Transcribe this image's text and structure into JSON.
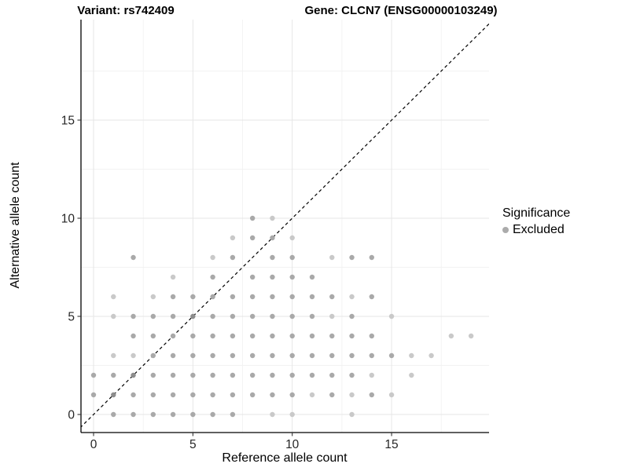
{
  "header": {
    "variant_title": "Variant: rs742409",
    "gene_title": "Gene: CLCN7 (ENSG00000103249)"
  },
  "chart_data": {
    "type": "scatter",
    "xlabel": "Reference allele count",
    "ylabel": "Alternative allele count",
    "x_ticks": [
      0,
      5,
      10,
      15
    ],
    "y_ticks": [
      0,
      5,
      10,
      15
    ],
    "x_minor_ticks": [
      2.5,
      7.5,
      12.5,
      17.5
    ],
    "y_minor_ticks": [
      2.5,
      7.5,
      12.5,
      17.5
    ],
    "xlim": [
      -0.65,
      19.9
    ],
    "ylim": [
      -0.95,
      20.1
    ],
    "grid": "major+minor",
    "identity_line": {
      "equation": "y = x",
      "style": "dashed",
      "color": "#000000"
    },
    "legend": {
      "position": "right",
      "title": "Significance",
      "items": [
        {
          "label": "Excluded",
          "color": "#ababab"
        }
      ]
    },
    "point_shades": {
      "l": "#c9c9c9",
      "m": "#a9a9a9",
      "d": "#8d8d8d"
    },
    "points_format": [
      "reference_allele_count",
      "alternative_allele_count",
      "shade"
    ],
    "points": [
      [
        1,
        0,
        "m"
      ],
      [
        2,
        0,
        "m"
      ],
      [
        3,
        0,
        "m"
      ],
      [
        4,
        0,
        "m"
      ],
      [
        5,
        0,
        "m"
      ],
      [
        6,
        0,
        "m"
      ],
      [
        7,
        0,
        "m"
      ],
      [
        9,
        0,
        "l"
      ],
      [
        10,
        0,
        "l"
      ],
      [
        13,
        0,
        "l"
      ],
      [
        0,
        1,
        "m"
      ],
      [
        1,
        1,
        "d"
      ],
      [
        2,
        1,
        "m"
      ],
      [
        3,
        1,
        "m"
      ],
      [
        4,
        1,
        "m"
      ],
      [
        5,
        1,
        "m"
      ],
      [
        6,
        1,
        "m"
      ],
      [
        7,
        1,
        "m"
      ],
      [
        8,
        1,
        "m"
      ],
      [
        9,
        1,
        "m"
      ],
      [
        10,
        1,
        "m"
      ],
      [
        11,
        1,
        "l"
      ],
      [
        12,
        1,
        "m"
      ],
      [
        13,
        1,
        "l"
      ],
      [
        14,
        1,
        "m"
      ],
      [
        15,
        1,
        "l"
      ],
      [
        0,
        2,
        "m"
      ],
      [
        1,
        2,
        "m"
      ],
      [
        2,
        2,
        "d"
      ],
      [
        3,
        2,
        "m"
      ],
      [
        4,
        2,
        "m"
      ],
      [
        5,
        2,
        "m"
      ],
      [
        6,
        2,
        "m"
      ],
      [
        7,
        2,
        "m"
      ],
      [
        8,
        2,
        "m"
      ],
      [
        9,
        2,
        "m"
      ],
      [
        10,
        2,
        "m"
      ],
      [
        11,
        2,
        "m"
      ],
      [
        12,
        2,
        "m"
      ],
      [
        13,
        2,
        "m"
      ],
      [
        14,
        2,
        "l"
      ],
      [
        16,
        2,
        "l"
      ],
      [
        1,
        3,
        "l"
      ],
      [
        2,
        3,
        "l"
      ],
      [
        3,
        3,
        "m"
      ],
      [
        4,
        3,
        "m"
      ],
      [
        5,
        3,
        "m"
      ],
      [
        6,
        3,
        "m"
      ],
      [
        7,
        3,
        "m"
      ],
      [
        8,
        3,
        "m"
      ],
      [
        9,
        3,
        "m"
      ],
      [
        10,
        3,
        "m"
      ],
      [
        11,
        3,
        "m"
      ],
      [
        12,
        3,
        "m"
      ],
      [
        13,
        3,
        "m"
      ],
      [
        14,
        3,
        "m"
      ],
      [
        15,
        3,
        "m"
      ],
      [
        16,
        3,
        "l"
      ],
      [
        17,
        3,
        "l"
      ],
      [
        2,
        4,
        "m"
      ],
      [
        3,
        4,
        "m"
      ],
      [
        4,
        4,
        "m"
      ],
      [
        5,
        4,
        "m"
      ],
      [
        6,
        4,
        "m"
      ],
      [
        7,
        4,
        "m"
      ],
      [
        8,
        4,
        "m"
      ],
      [
        9,
        4,
        "m"
      ],
      [
        10,
        4,
        "m"
      ],
      [
        11,
        4,
        "m"
      ],
      [
        12,
        4,
        "m"
      ],
      [
        13,
        4,
        "m"
      ],
      [
        14,
        4,
        "m"
      ],
      [
        18,
        4,
        "l"
      ],
      [
        19,
        4,
        "l"
      ],
      [
        1,
        5,
        "l"
      ],
      [
        2,
        5,
        "m"
      ],
      [
        3,
        5,
        "m"
      ],
      [
        4,
        5,
        "m"
      ],
      [
        5,
        5,
        "d"
      ],
      [
        6,
        5,
        "m"
      ],
      [
        7,
        5,
        "m"
      ],
      [
        8,
        5,
        "m"
      ],
      [
        9,
        5,
        "m"
      ],
      [
        10,
        5,
        "m"
      ],
      [
        11,
        5,
        "m"
      ],
      [
        12,
        5,
        "l"
      ],
      [
        13,
        5,
        "m"
      ],
      [
        15,
        5,
        "l"
      ],
      [
        1,
        6,
        "l"
      ],
      [
        3,
        6,
        "l"
      ],
      [
        4,
        6,
        "m"
      ],
      [
        5,
        6,
        "m"
      ],
      [
        6,
        6,
        "m"
      ],
      [
        7,
        6,
        "m"
      ],
      [
        8,
        6,
        "m"
      ],
      [
        9,
        6,
        "m"
      ],
      [
        10,
        6,
        "m"
      ],
      [
        11,
        6,
        "m"
      ],
      [
        12,
        6,
        "m"
      ],
      [
        13,
        6,
        "l"
      ],
      [
        14,
        6,
        "m"
      ],
      [
        4,
        7,
        "l"
      ],
      [
        6,
        7,
        "m"
      ],
      [
        8,
        7,
        "m"
      ],
      [
        9,
        7,
        "m"
      ],
      [
        10,
        7,
        "m"
      ],
      [
        11,
        7,
        "m"
      ],
      [
        2,
        8,
        "m"
      ],
      [
        6,
        8,
        "l"
      ],
      [
        7,
        8,
        "m"
      ],
      [
        9,
        8,
        "m"
      ],
      [
        10,
        8,
        "m"
      ],
      [
        12,
        8,
        "l"
      ],
      [
        13,
        8,
        "m"
      ],
      [
        14,
        8,
        "m"
      ],
      [
        7,
        9,
        "l"
      ],
      [
        8,
        9,
        "m"
      ],
      [
        9,
        9,
        "m"
      ],
      [
        10,
        9,
        "l"
      ],
      [
        8,
        10,
        "m"
      ],
      [
        9,
        10,
        "l"
      ]
    ]
  }
}
